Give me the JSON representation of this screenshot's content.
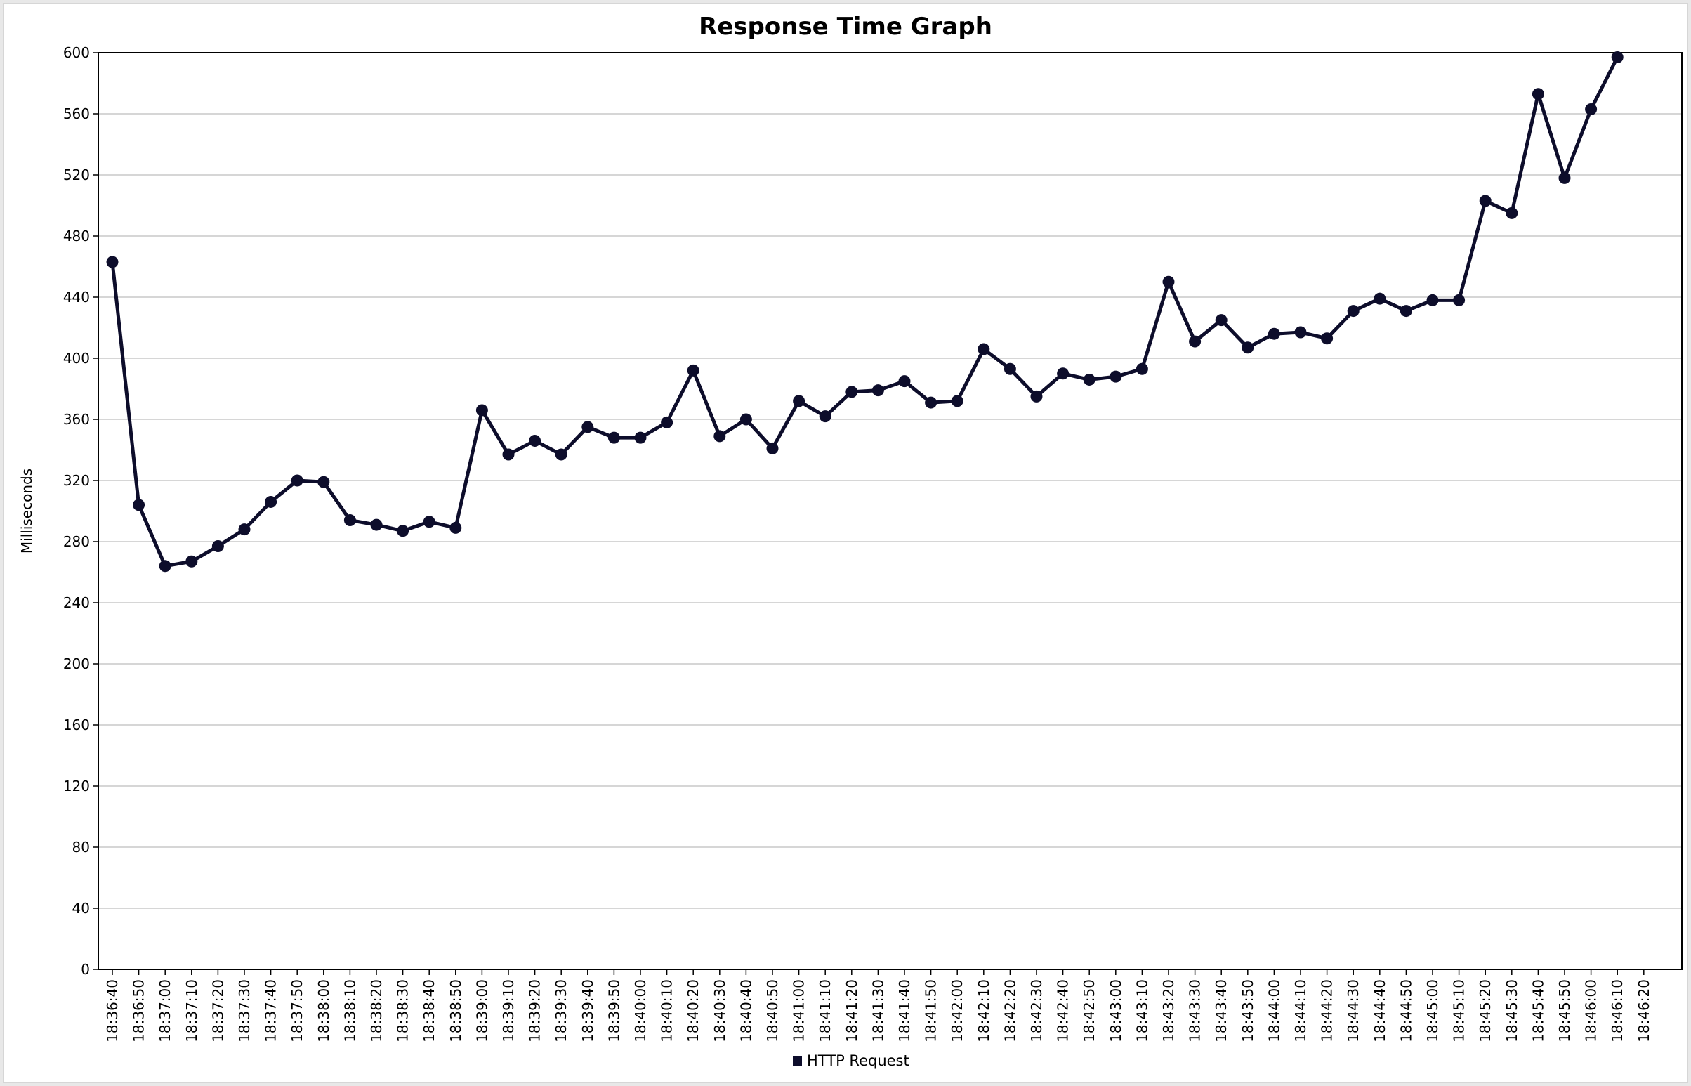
{
  "chart_data": {
    "type": "line",
    "title": "Response Time Graph",
    "ylabel": "Milliseconds",
    "xlabel": "",
    "ylim": [
      0,
      600
    ],
    "yticks": [
      0,
      40,
      80,
      120,
      160,
      200,
      240,
      280,
      320,
      360,
      400,
      440,
      480,
      520,
      560,
      600
    ],
    "grid": true,
    "legend_position": "bottom-center",
    "categories": [
      "18:36:40",
      "18:36:50",
      "18:37:00",
      "18:37:10",
      "18:37:20",
      "18:37:30",
      "18:37:40",
      "18:37:50",
      "18:38:00",
      "18:38:10",
      "18:38:20",
      "18:38:30",
      "18:38:40",
      "18:38:50",
      "18:39:00",
      "18:39:10",
      "18:39:20",
      "18:39:30",
      "18:39:40",
      "18:39:50",
      "18:40:00",
      "18:40:10",
      "18:40:20",
      "18:40:30",
      "18:40:40",
      "18:40:50",
      "18:41:00",
      "18:41:10",
      "18:41:20",
      "18:41:30",
      "18:41:40",
      "18:41:50",
      "18:42:00",
      "18:42:10",
      "18:42:20",
      "18:42:30",
      "18:42:40",
      "18:42:50",
      "18:43:00",
      "18:43:10",
      "18:43:20",
      "18:43:30",
      "18:43:40",
      "18:43:50",
      "18:44:00",
      "18:44:10",
      "18:44:20",
      "18:44:30",
      "18:44:40",
      "18:44:50",
      "18:45:00",
      "18:45:10",
      "18:45:20",
      "18:45:30",
      "18:45:40",
      "18:45:50",
      "18:46:00",
      "18:46:10",
      "18:46:20"
    ],
    "series": [
      {
        "name": "HTTP Request",
        "color": "#0d0d2b",
        "values": [
          463,
          304,
          264,
          267,
          277,
          288,
          306,
          320,
          319,
          294,
          291,
          287,
          293,
          289,
          366,
          337,
          346,
          337,
          355,
          348,
          348,
          358,
          392,
          349,
          360,
          341,
          372,
          362,
          378,
          379,
          385,
          371,
          372,
          406,
          393,
          375,
          390,
          386,
          388,
          393,
          450,
          411,
          425,
          407,
          416,
          417,
          413,
          431,
          439,
          431,
          438,
          438,
          503,
          495,
          573,
          518,
          563,
          597,
          null
        ]
      }
    ]
  }
}
